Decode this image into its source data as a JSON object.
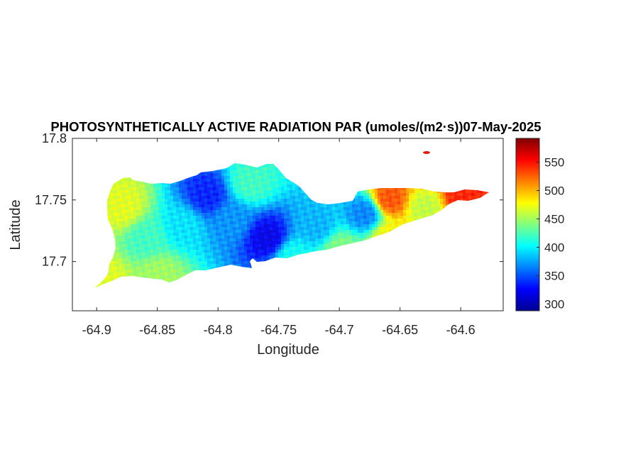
{
  "chart_data": {
    "type": "heatmap",
    "title": "PHOTOSYNTHETICALLY ACTIVE RADIATION PAR (umoles/(m2·s))07-May-2025",
    "xlabel": "Longitude",
    "ylabel": "Latitude",
    "xlim": [
      -64.92,
      -64.565
    ],
    "ylim": [
      17.66,
      17.8
    ],
    "x_ticks": [
      -64.9,
      -64.85,
      -64.8,
      -64.75,
      -64.7,
      -64.65,
      -64.6
    ],
    "x_tick_labels": [
      "-64.9",
      "-64.85",
      "-64.8",
      "-64.75",
      "-64.7",
      "-64.65",
      "-64.6"
    ],
    "y_ticks": [
      17.8,
      17.75,
      17.7
    ],
    "y_tick_labels": [
      "17.8",
      "17.75",
      "17.7"
    ],
    "colorbar": {
      "colormap": "jet",
      "range": [
        288,
        592
      ],
      "ticks": [
        300,
        350,
        400,
        450,
        500,
        550
      ],
      "tick_labels": [
        "300",
        "350",
        "400",
        "450",
        "500",
        "550"
      ]
    },
    "grid": false,
    "field_samples": [
      {
        "lon": -64.895,
        "lat": 17.685,
        "value": 470
      },
      {
        "lon": -64.88,
        "lat": 17.745,
        "value": 470
      },
      {
        "lon": -64.86,
        "lat": 17.72,
        "value": 420
      },
      {
        "lon": -64.85,
        "lat": 17.69,
        "value": 450
      },
      {
        "lon": -64.83,
        "lat": 17.73,
        "value": 395
      },
      {
        "lon": -64.81,
        "lat": 17.755,
        "value": 335
      },
      {
        "lon": -64.79,
        "lat": 17.735,
        "value": 370
      },
      {
        "lon": -64.775,
        "lat": 17.765,
        "value": 420
      },
      {
        "lon": -64.76,
        "lat": 17.72,
        "value": 320
      },
      {
        "lon": -64.74,
        "lat": 17.705,
        "value": 405
      },
      {
        "lon": -64.72,
        "lat": 17.73,
        "value": 380
      },
      {
        "lon": -64.7,
        "lat": 17.71,
        "value": 440
      },
      {
        "lon": -64.68,
        "lat": 17.74,
        "value": 365
      },
      {
        "lon": -64.66,
        "lat": 17.72,
        "value": 480
      },
      {
        "lon": -64.66,
        "lat": 17.752,
        "value": 530
      },
      {
        "lon": -64.63,
        "lat": 17.745,
        "value": 460
      },
      {
        "lon": -64.6,
        "lat": 17.753,
        "value": 545
      },
      {
        "lon": -64.625,
        "lat": 17.785,
        "value": 585
      }
    ]
  }
}
